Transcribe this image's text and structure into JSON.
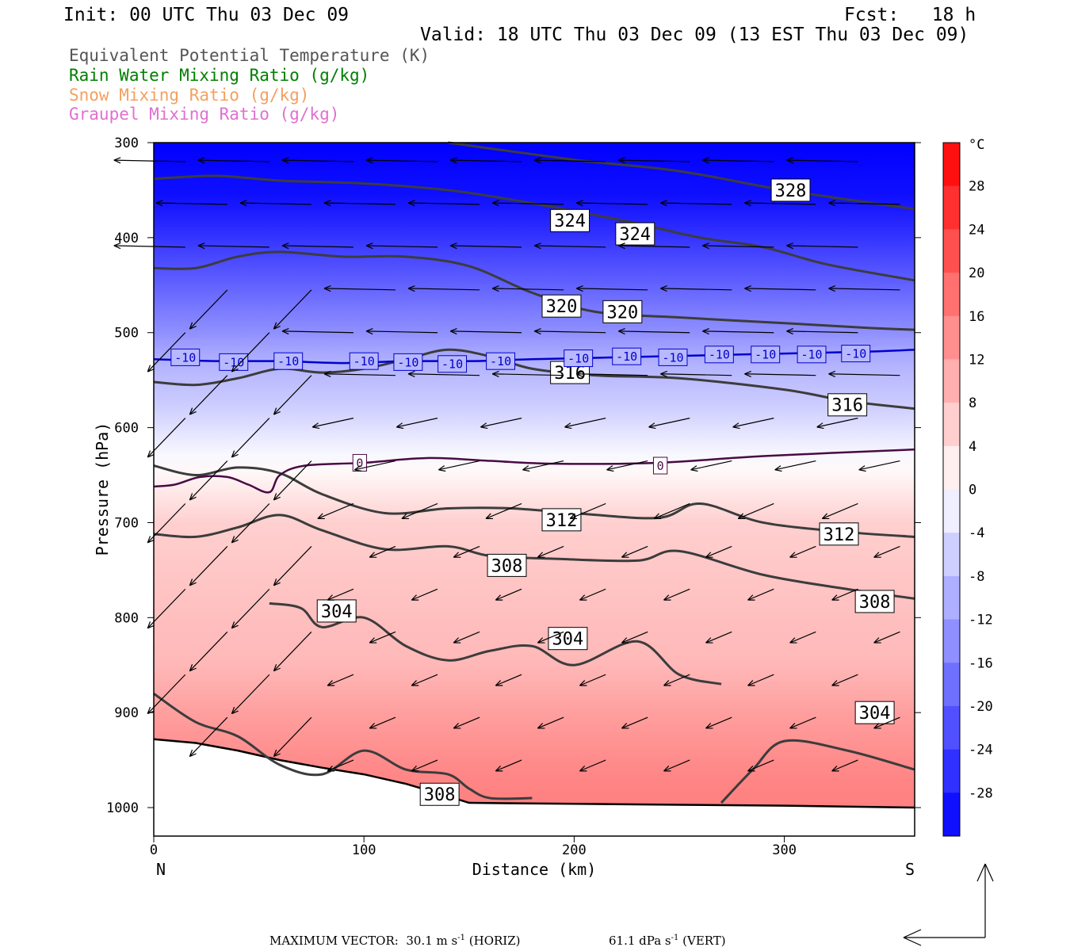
{
  "header": {
    "init": "Init: 00 UTC Thu 03 Dec 09",
    "fcst": "Fcst:   18 h",
    "valid": "Valid: 18 UTC Thu 03 Dec 09 (13 EST Thu 03 Dec 09)"
  },
  "legend": [
    {
      "label": "Equivalent Potential Temperature (K)",
      "color": "#555555"
    },
    {
      "label": "Rain Water Mixing Ratio (g/kg)",
      "color": "#007f00"
    },
    {
      "label": "Snow Mixing Ratio (g/kg)",
      "color": "#f4a060"
    },
    {
      "label": "Graupel Mixing Ratio (g/kg)",
      "color": "#e070d0"
    }
  ],
  "chart_data": {
    "type": "heatmap",
    "xlabel": "Distance (km)",
    "ylabel": "Pressure (hPa)",
    "x_ticks": [
      0,
      100,
      200,
      300
    ],
    "xlim": [
      0,
      362
    ],
    "y_ticks": [
      300,
      400,
      500,
      600,
      700,
      800,
      900,
      1000
    ],
    "ylim": [
      300,
      1030
    ],
    "x_end_labels": {
      "left": "N",
      "right": "S"
    },
    "colorbar": {
      "unit": "°C",
      "ticks": [
        28,
        24,
        20,
        16,
        12,
        8,
        4,
        0,
        -4,
        -8,
        -12,
        -16,
        -20,
        -24,
        -28
      ],
      "range": [
        -32,
        32
      ],
      "cold_color": "#0000ff",
      "warm_color": "#ff0000"
    },
    "temperature_contours": [
      {
        "value": 0,
        "label": "0",
        "color": "#4a0a44",
        "points": [
          [
            0,
            662
          ],
          [
            10,
            660
          ],
          [
            22,
            652
          ],
          [
            35,
            652
          ],
          [
            45,
            660
          ],
          [
            55,
            668
          ],
          [
            60,
            650
          ],
          [
            72,
            640
          ],
          [
            100,
            637
          ],
          [
            130,
            632
          ],
          [
            160,
            635
          ],
          [
            190,
            638
          ],
          [
            240,
            637
          ],
          [
            290,
            630
          ],
          [
            362,
            623
          ]
        ],
        "labels_at": [
          [
            98,
            637
          ],
          [
            241,
            640
          ]
        ]
      },
      {
        "value": -10,
        "label": "-10",
        "color": "#0000cc",
        "points": [
          [
            0,
            528
          ],
          [
            30,
            530
          ],
          [
            60,
            530
          ],
          [
            90,
            532
          ],
          [
            120,
            530
          ],
          [
            150,
            530
          ],
          [
            180,
            528
          ],
          [
            220,
            526
          ],
          [
            260,
            524
          ],
          [
            300,
            522
          ],
          [
            340,
            520
          ],
          [
            362,
            518
          ]
        ],
        "labels_at": [
          [
            15,
            526
          ],
          [
            38,
            531
          ],
          [
            64,
            530
          ],
          [
            100,
            530
          ],
          [
            121,
            531
          ],
          [
            142,
            533
          ],
          [
            165,
            530
          ],
          [
            202,
            527
          ],
          [
            225,
            525
          ],
          [
            247,
            526
          ],
          [
            269,
            523
          ],
          [
            291,
            523
          ],
          [
            313,
            523
          ],
          [
            334,
            522
          ]
        ]
      }
    ],
    "theta_e_contours": [
      {
        "value": 328,
        "label": "328",
        "points": [
          [
            140,
            300
          ],
          [
            200,
            318
          ],
          [
            250,
            330
          ],
          [
            300,
            350
          ],
          [
            362,
            370
          ]
        ],
        "labels_at": [
          [
            303,
            350
          ]
        ]
      },
      {
        "value": 324,
        "label": "324",
        "points": [
          [
            0,
            338
          ],
          [
            30,
            335
          ],
          [
            60,
            340
          ],
          [
            100,
            343
          ],
          [
            140,
            350
          ],
          [
            170,
            360
          ],
          [
            200,
            372
          ],
          [
            230,
            385
          ],
          [
            260,
            400
          ],
          [
            290,
            410
          ],
          [
            320,
            428
          ],
          [
            362,
            445
          ]
        ],
        "labels_at": [
          [
            198,
            382
          ],
          [
            229,
            396
          ]
        ]
      },
      {
        "value": 320,
        "label": "320",
        "points": [
          [
            0,
            432
          ],
          [
            20,
            432
          ],
          [
            40,
            420
          ],
          [
            60,
            415
          ],
          [
            90,
            420
          ],
          [
            120,
            420
          ],
          [
            150,
            430
          ],
          [
            180,
            458
          ],
          [
            210,
            478
          ],
          [
            250,
            484
          ],
          [
            300,
            490
          ],
          [
            340,
            495
          ],
          [
            362,
            497
          ]
        ],
        "labels_at": [
          [
            194,
            472
          ],
          [
            223,
            478
          ]
        ]
      },
      {
        "value": 316,
        "label": "316",
        "points": [
          [
            0,
            552
          ],
          [
            20,
            555
          ],
          [
            40,
            548
          ],
          [
            60,
            538
          ],
          [
            80,
            542
          ],
          [
            100,
            538
          ],
          [
            120,
            528
          ],
          [
            140,
            518
          ],
          [
            160,
            525
          ],
          [
            180,
            538
          ],
          [
            210,
            545
          ],
          [
            250,
            548
          ],
          [
            300,
            560
          ],
          [
            330,
            572
          ],
          [
            362,
            580
          ]
        ],
        "labels_at": [
          [
            198,
            542
          ],
          [
            330,
            576
          ]
        ]
      },
      {
        "value": 312,
        "label": "312",
        "points": [
          [
            0,
            640
          ],
          [
            20,
            650
          ],
          [
            40,
            642
          ],
          [
            60,
            648
          ],
          [
            80,
            670
          ],
          [
            110,
            690
          ],
          [
            140,
            685
          ],
          [
            170,
            685
          ],
          [
            200,
            690
          ],
          [
            240,
            695
          ],
          [
            260,
            680
          ],
          [
            290,
            700
          ],
          [
            330,
            710
          ],
          [
            362,
            715
          ]
        ],
        "labels_at": [
          [
            194,
            697
          ],
          [
            326,
            712
          ]
        ]
      },
      {
        "value": 308,
        "label": "308",
        "points": [
          [
            0,
            712
          ],
          [
            20,
            715
          ],
          [
            40,
            705
          ],
          [
            60,
            692
          ],
          [
            80,
            708
          ],
          [
            110,
            728
          ],
          [
            140,
            725
          ],
          [
            160,
            735
          ],
          [
            190,
            738
          ],
          [
            230,
            740
          ],
          [
            250,
            730
          ],
          [
            290,
            755
          ],
          [
            330,
            770
          ],
          [
            362,
            780
          ]
        ],
        "labels_at": [
          [
            168,
            745
          ],
          [
            343,
            783
          ]
        ]
      },
      {
        "value": 304,
        "label": "304",
        "points": [
          [
            55,
            785
          ],
          [
            70,
            790
          ],
          [
            80,
            810
          ],
          [
            100,
            800
          ],
          [
            120,
            830
          ],
          [
            140,
            845
          ],
          [
            160,
            835
          ],
          [
            180,
            830
          ],
          [
            200,
            850
          ],
          [
            230,
            825
          ],
          [
            250,
            860
          ],
          [
            270,
            870
          ]
        ],
        "labels_at": [
          [
            87,
            793
          ],
          [
            197,
            822
          ],
          [
            343,
            900
          ]
        ]
      },
      {
        "value": 308,
        "label": "308",
        "points": [
          [
            0,
            880
          ],
          [
            20,
            910
          ],
          [
            40,
            925
          ],
          [
            60,
            955
          ],
          [
            80,
            965
          ],
          [
            100,
            940
          ],
          [
            120,
            960
          ],
          [
            140,
            965
          ],
          [
            150,
            980
          ],
          [
            160,
            990
          ],
          [
            180,
            990
          ]
        ],
        "labels_at": [
          [
            136,
            986
          ]
        ]
      },
      {
        "value": 304,
        "label": "304",
        "points": [
          [
            270,
            995
          ],
          [
            285,
            960
          ],
          [
            300,
            930
          ],
          [
            330,
            940
          ],
          [
            362,
            960
          ]
        ],
        "labels_at": []
      }
    ],
    "terrain_pressure": [
      [
        0,
        928
      ],
      [
        20,
        932
      ],
      [
        40,
        940
      ],
      [
        60,
        950
      ],
      [
        80,
        958
      ],
      [
        100,
        965
      ],
      [
        120,
        975
      ],
      [
        140,
        988
      ],
      [
        150,
        995
      ],
      [
        200,
        996
      ],
      [
        250,
        997
      ],
      [
        300,
        998
      ],
      [
        362,
        1000
      ]
    ]
  },
  "footer": {
    "max_vector_label": "MAXIMUM VECTOR:",
    "horiz_value": "30.1 m s",
    "horiz_exp": "-1",
    "horiz_tag": "(HORIZ)",
    "vert_value": "61.1 dPa s",
    "vert_exp": "-1",
    "vert_tag": "(VERT)"
  }
}
